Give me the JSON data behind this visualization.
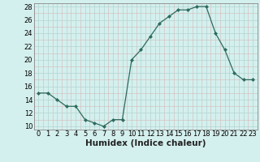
{
  "x": [
    0,
    1,
    2,
    3,
    4,
    5,
    6,
    7,
    8,
    9,
    10,
    11,
    12,
    13,
    14,
    15,
    16,
    17,
    18,
    19,
    20,
    21,
    22,
    23
  ],
  "y": [
    15,
    15,
    14,
    13,
    13,
    11,
    10.5,
    10,
    11,
    11,
    20,
    21.5,
    23.5,
    25.5,
    26.5,
    27.5,
    27.5,
    28,
    28,
    24,
    21.5,
    18,
    17,
    17
  ],
  "line_color": "#2d6b5e",
  "marker_color": "#2d6b5e",
  "bg_color": "#d4f0ee",
  "major_grid_color": "#b8d8d4",
  "minor_grid_color": "#d4b8b8",
  "xlabel": "Humidex (Indice chaleur)",
  "xlim": [
    -0.5,
    23.5
  ],
  "ylim": [
    9.5,
    28.5
  ],
  "yticks": [
    10,
    12,
    14,
    16,
    18,
    20,
    22,
    24,
    26,
    28
  ],
  "xticks": [
    0,
    1,
    2,
    3,
    4,
    5,
    6,
    7,
    8,
    9,
    10,
    11,
    12,
    13,
    14,
    15,
    16,
    17,
    18,
    19,
    20,
    21,
    22,
    23
  ],
  "tick_fontsize": 6,
  "xlabel_fontsize": 7.5
}
